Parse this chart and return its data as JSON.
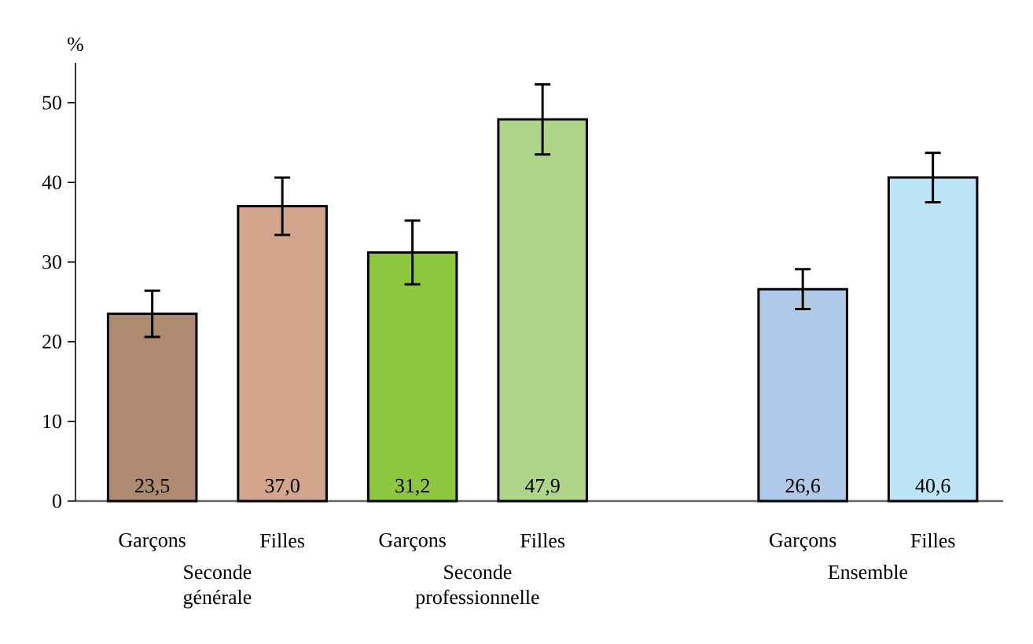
{
  "chart_data": {
    "type": "bar",
    "ylabel": "%",
    "categories": [
      "Garçons",
      "Filles",
      "Garçons",
      "Filles",
      null,
      "Garçons",
      "Filles"
    ],
    "values": [
      23.5,
      37.0,
      31.2,
      47.9,
      null,
      26.6,
      40.6
    ],
    "value_labels": [
      "23,5",
      "37,0",
      "31,2",
      "47,9",
      null,
      "26,6",
      "40,6"
    ],
    "errors": [
      2.9,
      3.6,
      4.0,
      4.4,
      null,
      2.5,
      3.1
    ],
    "colors": [
      "#ae8b70",
      "#d4a58d",
      "#8dc63f",
      "#aed58a",
      null,
      "#afc9e8",
      "#bde5f7"
    ],
    "annotations": [
      "Seconde générale",
      "Seconde professionnelle",
      "Ensemble"
    ],
    "ylim": [
      0,
      55
    ],
    "yticks": [
      0,
      10,
      20,
      30,
      40,
      50
    ]
  }
}
